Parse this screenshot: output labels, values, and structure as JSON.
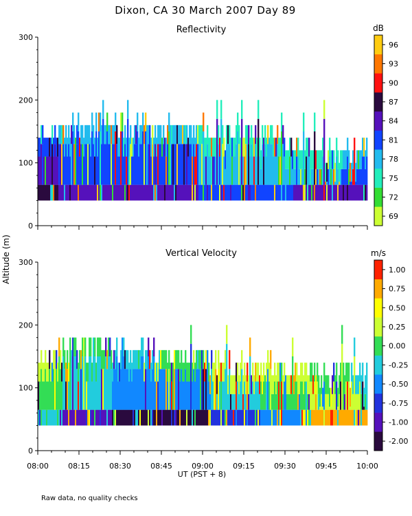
{
  "figure": {
    "title": "Dixon, CA 30 March 2007  Day  89",
    "ylabel": "Altitude (m)",
    "xlabel": "UT  (PST + 8)",
    "footnote": "Raw data, no quality checks"
  },
  "chart_data": [
    {
      "type": "heatmap",
      "title": "Reflectivity",
      "units": "dB",
      "x_ticks": [
        "08:00",
        "08:15",
        "08:30",
        "08:45",
        "09:00",
        "09:15",
        "09:30",
        "09:45",
        "10:00"
      ],
      "x_range_hours_ut": [
        8.0,
        10.0
      ],
      "ylim": [
        0,
        300
      ],
      "y_ticks": [
        0,
        100,
        200,
        300
      ],
      "colorbar": {
        "labels": [
          "69",
          "72",
          "75",
          "78",
          "81",
          "84",
          "87",
          "90",
          "93",
          "96"
        ],
        "colors": [
          "#ccff33",
          "#33dd33",
          "#22eebb",
          "#22bbee",
          "#1144ff",
          "#5511bb",
          "#2a0a3e",
          "#ff1111",
          "#ff7700",
          "#ffcc11"
        ]
      },
      "echo_base_m": 40,
      "typical_echo_top_m": [
        120,
        160
      ],
      "max_echo_top_m": 200,
      "profile": [
        {
          "t": 8.0,
          "top": 140,
          "mid": "#5511bb",
          "high": "#1144ff",
          "low": "#2a0a3e"
        },
        {
          "t": 8.25,
          "top": 160,
          "mid": "#1144ff",
          "high": "#22bbee",
          "low": "#5511bb"
        },
        {
          "t": 8.55,
          "top": 160,
          "mid": "#1144ff",
          "high": "#22bbee",
          "low": "#5511bb"
        },
        {
          "t": 8.85,
          "top": 150,
          "mid": "#1144ff",
          "high": "#22bbee",
          "low": "#5511bb"
        },
        {
          "t": 9.1,
          "top": 150,
          "mid": "#22bbee",
          "high": "#22eebb",
          "low": "#1144ff"
        },
        {
          "t": 9.4,
          "top": 140,
          "mid": "#22bbee",
          "high": "#22eebb",
          "low": "#1144ff"
        },
        {
          "t": 9.7,
          "top": 120,
          "mid": "#22bbee",
          "high": "#22eebb",
          "low": "#5511bb"
        },
        {
          "t": 10.0,
          "top": 120,
          "mid": "#1144ff",
          "high": "#22bbee",
          "low": "#5511bb"
        }
      ]
    },
    {
      "type": "heatmap",
      "title": "Vertical Velocity",
      "units": "m/s",
      "x_ticks": [
        "08:00",
        "08:15",
        "08:30",
        "08:45",
        "09:00",
        "09:15",
        "09:30",
        "09:45",
        "10:00"
      ],
      "x_range_hours_ut": [
        8.0,
        10.0
      ],
      "ylim": [
        0,
        300
      ],
      "y_ticks": [
        0,
        100,
        200,
        300
      ],
      "colorbar": {
        "labels": [
          "-2.00",
          "-1.00",
          "-0.75",
          "-0.50",
          "-0.25",
          "0.00",
          "0.25",
          "0.50",
          "0.75",
          "1.00"
        ],
        "colors": [
          "#2a0a3e",
          "#5511bb",
          "#2233dd",
          "#1188ff",
          "#22ccdd",
          "#33dd55",
          "#ccff33",
          "#ffff00",
          "#ffaa00",
          "#ff2200"
        ]
      },
      "echo_base_m": 40,
      "typical_echo_top_m": [
        120,
        160
      ],
      "max_echo_top_m": 200,
      "profile": [
        {
          "t": 8.0,
          "top": 150,
          "mid": "#33dd55",
          "high": "#ccff33",
          "low": "#22ccdd"
        },
        {
          "t": 8.3,
          "top": 160,
          "mid": "#22ccdd",
          "high": "#33dd55",
          "low": "#5511bb"
        },
        {
          "t": 8.6,
          "top": 160,
          "mid": "#1188ff",
          "high": "#22ccdd",
          "low": "#2a0a3e"
        },
        {
          "t": 8.9,
          "top": 150,
          "mid": "#1188ff",
          "high": "#33dd55",
          "low": "#2a0a3e"
        },
        {
          "t": 9.2,
          "top": 140,
          "mid": "#22ccdd",
          "high": "#ccff33",
          "low": "#2233dd"
        },
        {
          "t": 9.5,
          "top": 130,
          "mid": "#33dd55",
          "high": "#ccff33",
          "low": "#1188ff"
        },
        {
          "t": 9.8,
          "top": 120,
          "mid": "#ccff33",
          "high": "#33dd55",
          "low": "#ffaa00"
        },
        {
          "t": 10.0,
          "top": 120,
          "mid": "#ccff33",
          "high": "#22ccdd",
          "low": "#ffaa00"
        }
      ]
    }
  ]
}
